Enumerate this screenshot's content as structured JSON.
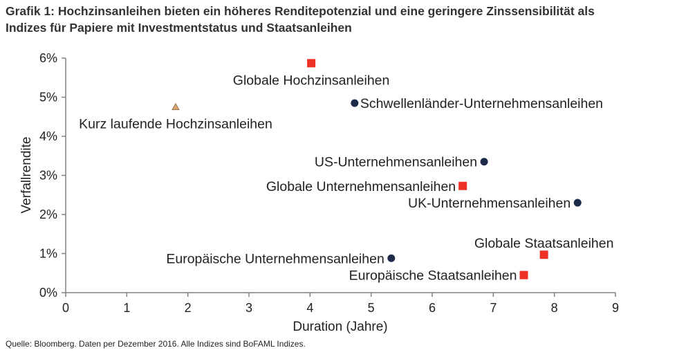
{
  "title": {
    "line1": "Grafik 1: Hochzinsanleihen bieten ein höheres Renditepotenzial und eine geringere Zinssensibilität als",
    "line2": "Indizes für Papiere mit Investmentstatus und Staatsanleihen"
  },
  "source": "Quelle: Bloomberg. Daten per Dezember 2016. Alle Indizes sind BoFAML Indizes.",
  "chart_data": {
    "type": "scatter",
    "xlabel": "Duration (Jahre)",
    "ylabel": "Verfallrendite",
    "xlim": [
      0,
      9
    ],
    "ylim": [
      0,
      6
    ],
    "x_ticks": [
      "0",
      "1",
      "2",
      "3",
      "4",
      "5",
      "6",
      "7",
      "8",
      "9"
    ],
    "y_ticks": [
      "0%",
      "1%",
      "2%",
      "3%",
      "4%",
      "5%",
      "6%"
    ],
    "grid": false,
    "colors": {
      "square": "#ee3124",
      "circle": "#1c2b4a",
      "triangle": "#d9a46e"
    },
    "points": [
      {
        "label": "Globale Hochzinsanleihen",
        "x": 4.02,
        "y": 5.87,
        "marker": "square",
        "label_pos": "below"
      },
      {
        "label": "Kurz laufende Hochzinsanleihen",
        "x": 1.8,
        "y": 4.75,
        "marker": "triangle",
        "label_pos": "below"
      },
      {
        "label": "Schwellenländer-Unternehmensanleihen",
        "x": 4.73,
        "y": 4.85,
        "marker": "circle",
        "label_pos": "right"
      },
      {
        "label": "US-Unternehmensanleihen",
        "x": 6.85,
        "y": 3.35,
        "marker": "circle",
        "label_pos": "left"
      },
      {
        "label": "Globale Unternehmensanleihen",
        "x": 6.5,
        "y": 2.73,
        "marker": "square",
        "label_pos": "left"
      },
      {
        "label": "UK-Unternehmensanleihen",
        "x": 8.38,
        "y": 2.3,
        "marker": "circle",
        "label_pos": "left"
      },
      {
        "label": "Globale Staatsanleihen",
        "x": 7.83,
        "y": 0.97,
        "marker": "square",
        "label_pos": "above"
      },
      {
        "label": "Europäische Unternehmensanleihen",
        "x": 5.33,
        "y": 0.88,
        "marker": "circle",
        "label_pos": "left"
      },
      {
        "label": "Europäische Staatsanleihen",
        "x": 7.5,
        "y": 0.45,
        "marker": "square",
        "label_pos": "left"
      }
    ]
  }
}
